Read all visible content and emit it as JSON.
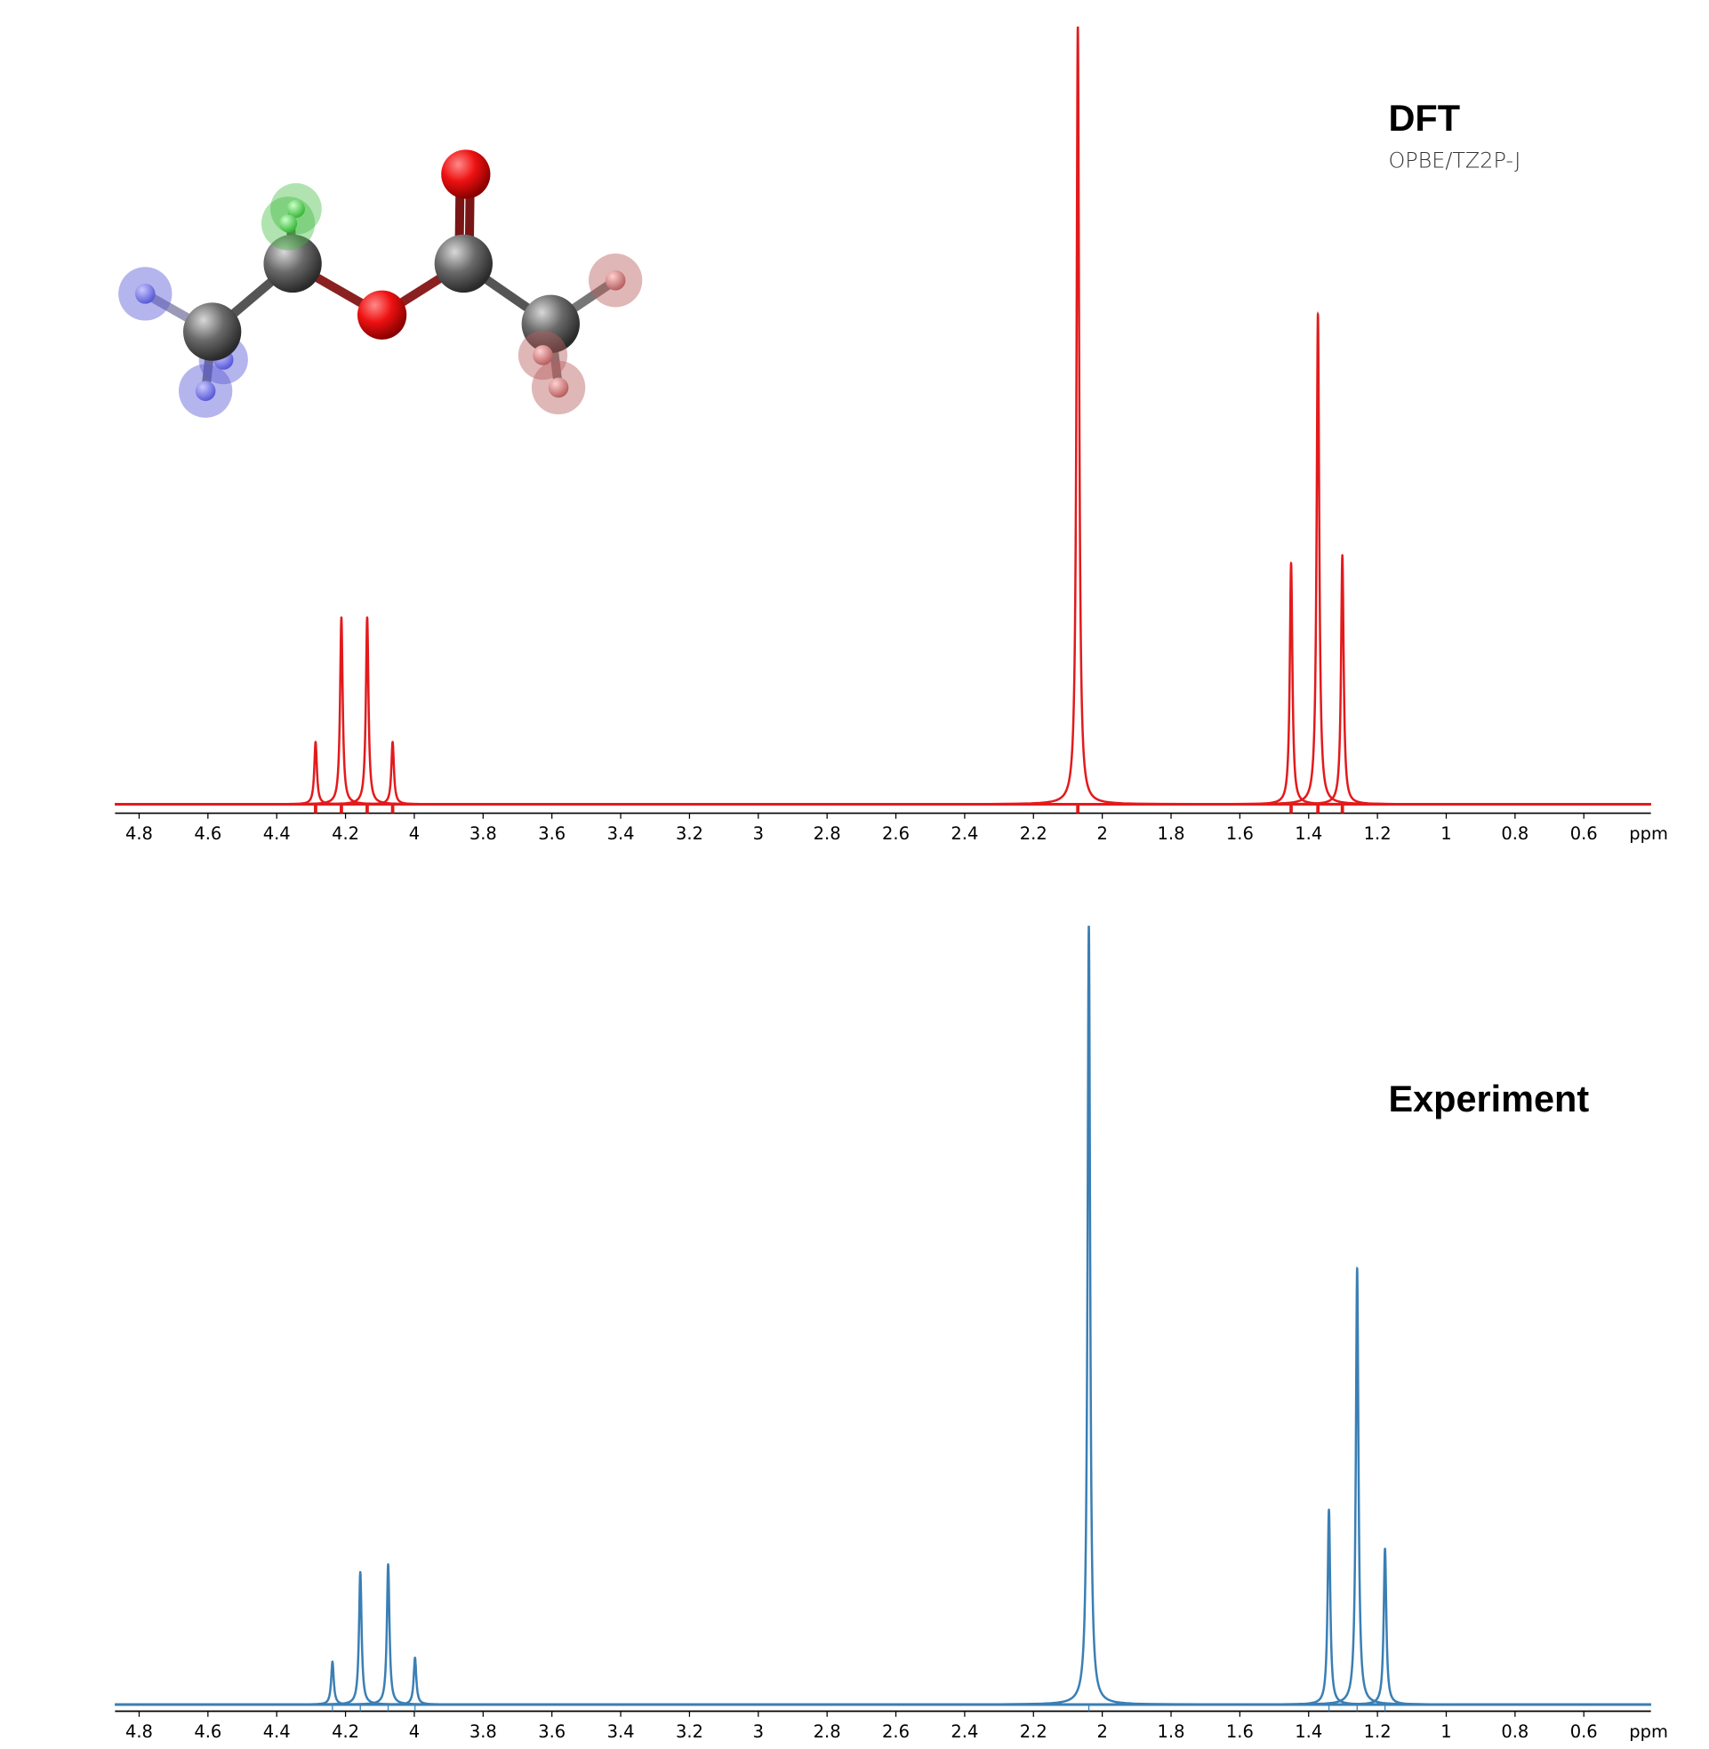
{
  "chart_data": [
    {
      "type": "spectrum",
      "title": "DFT",
      "subtitle": "OPBE/TZ2P-J",
      "x_label": "ppm",
      "color": "#e31a1c",
      "x": [
        4.287,
        4.212,
        4.137,
        4.063,
        2.071,
        1.451,
        1.373,
        1.302
      ],
      "values": [
        0.08,
        0.24,
        0.24,
        0.08,
        1.0,
        0.31,
        0.63,
        0.32
      ],
      "xlim": [
        4.87,
        0.405
      ],
      "ylim": [
        0,
        1
      ],
      "xticks": [
        4.8,
        4.6,
        4.4,
        4.2,
        4,
        3.8,
        3.6,
        3.4,
        3.2,
        3,
        2.8,
        2.6,
        2.4,
        2.2,
        2,
        1.8,
        1.6,
        1.4,
        1.2,
        1,
        0.8,
        0.6
      ]
    },
    {
      "type": "spectrum",
      "title": "Experiment",
      "x_label": "ppm",
      "color": "#3a7fb5",
      "x": [
        4.238,
        4.157,
        4.076,
        3.998,
        2.039,
        1.341,
        1.259,
        1.178
      ],
      "values": [
        0.055,
        0.17,
        0.18,
        0.06,
        1.0,
        0.25,
        0.56,
        0.2
      ],
      "xlim": [
        4.87,
        0.405
      ],
      "ylim": [
        0,
        1
      ],
      "xticks": [
        4.8,
        4.6,
        4.4,
        4.2,
        4,
        3.8,
        3.6,
        3.4,
        3.2,
        3,
        2.8,
        2.6,
        2.4,
        2.2,
        2,
        1.8,
        1.6,
        1.4,
        1.2,
        1,
        0.8,
        0.6
      ]
    }
  ]
}
